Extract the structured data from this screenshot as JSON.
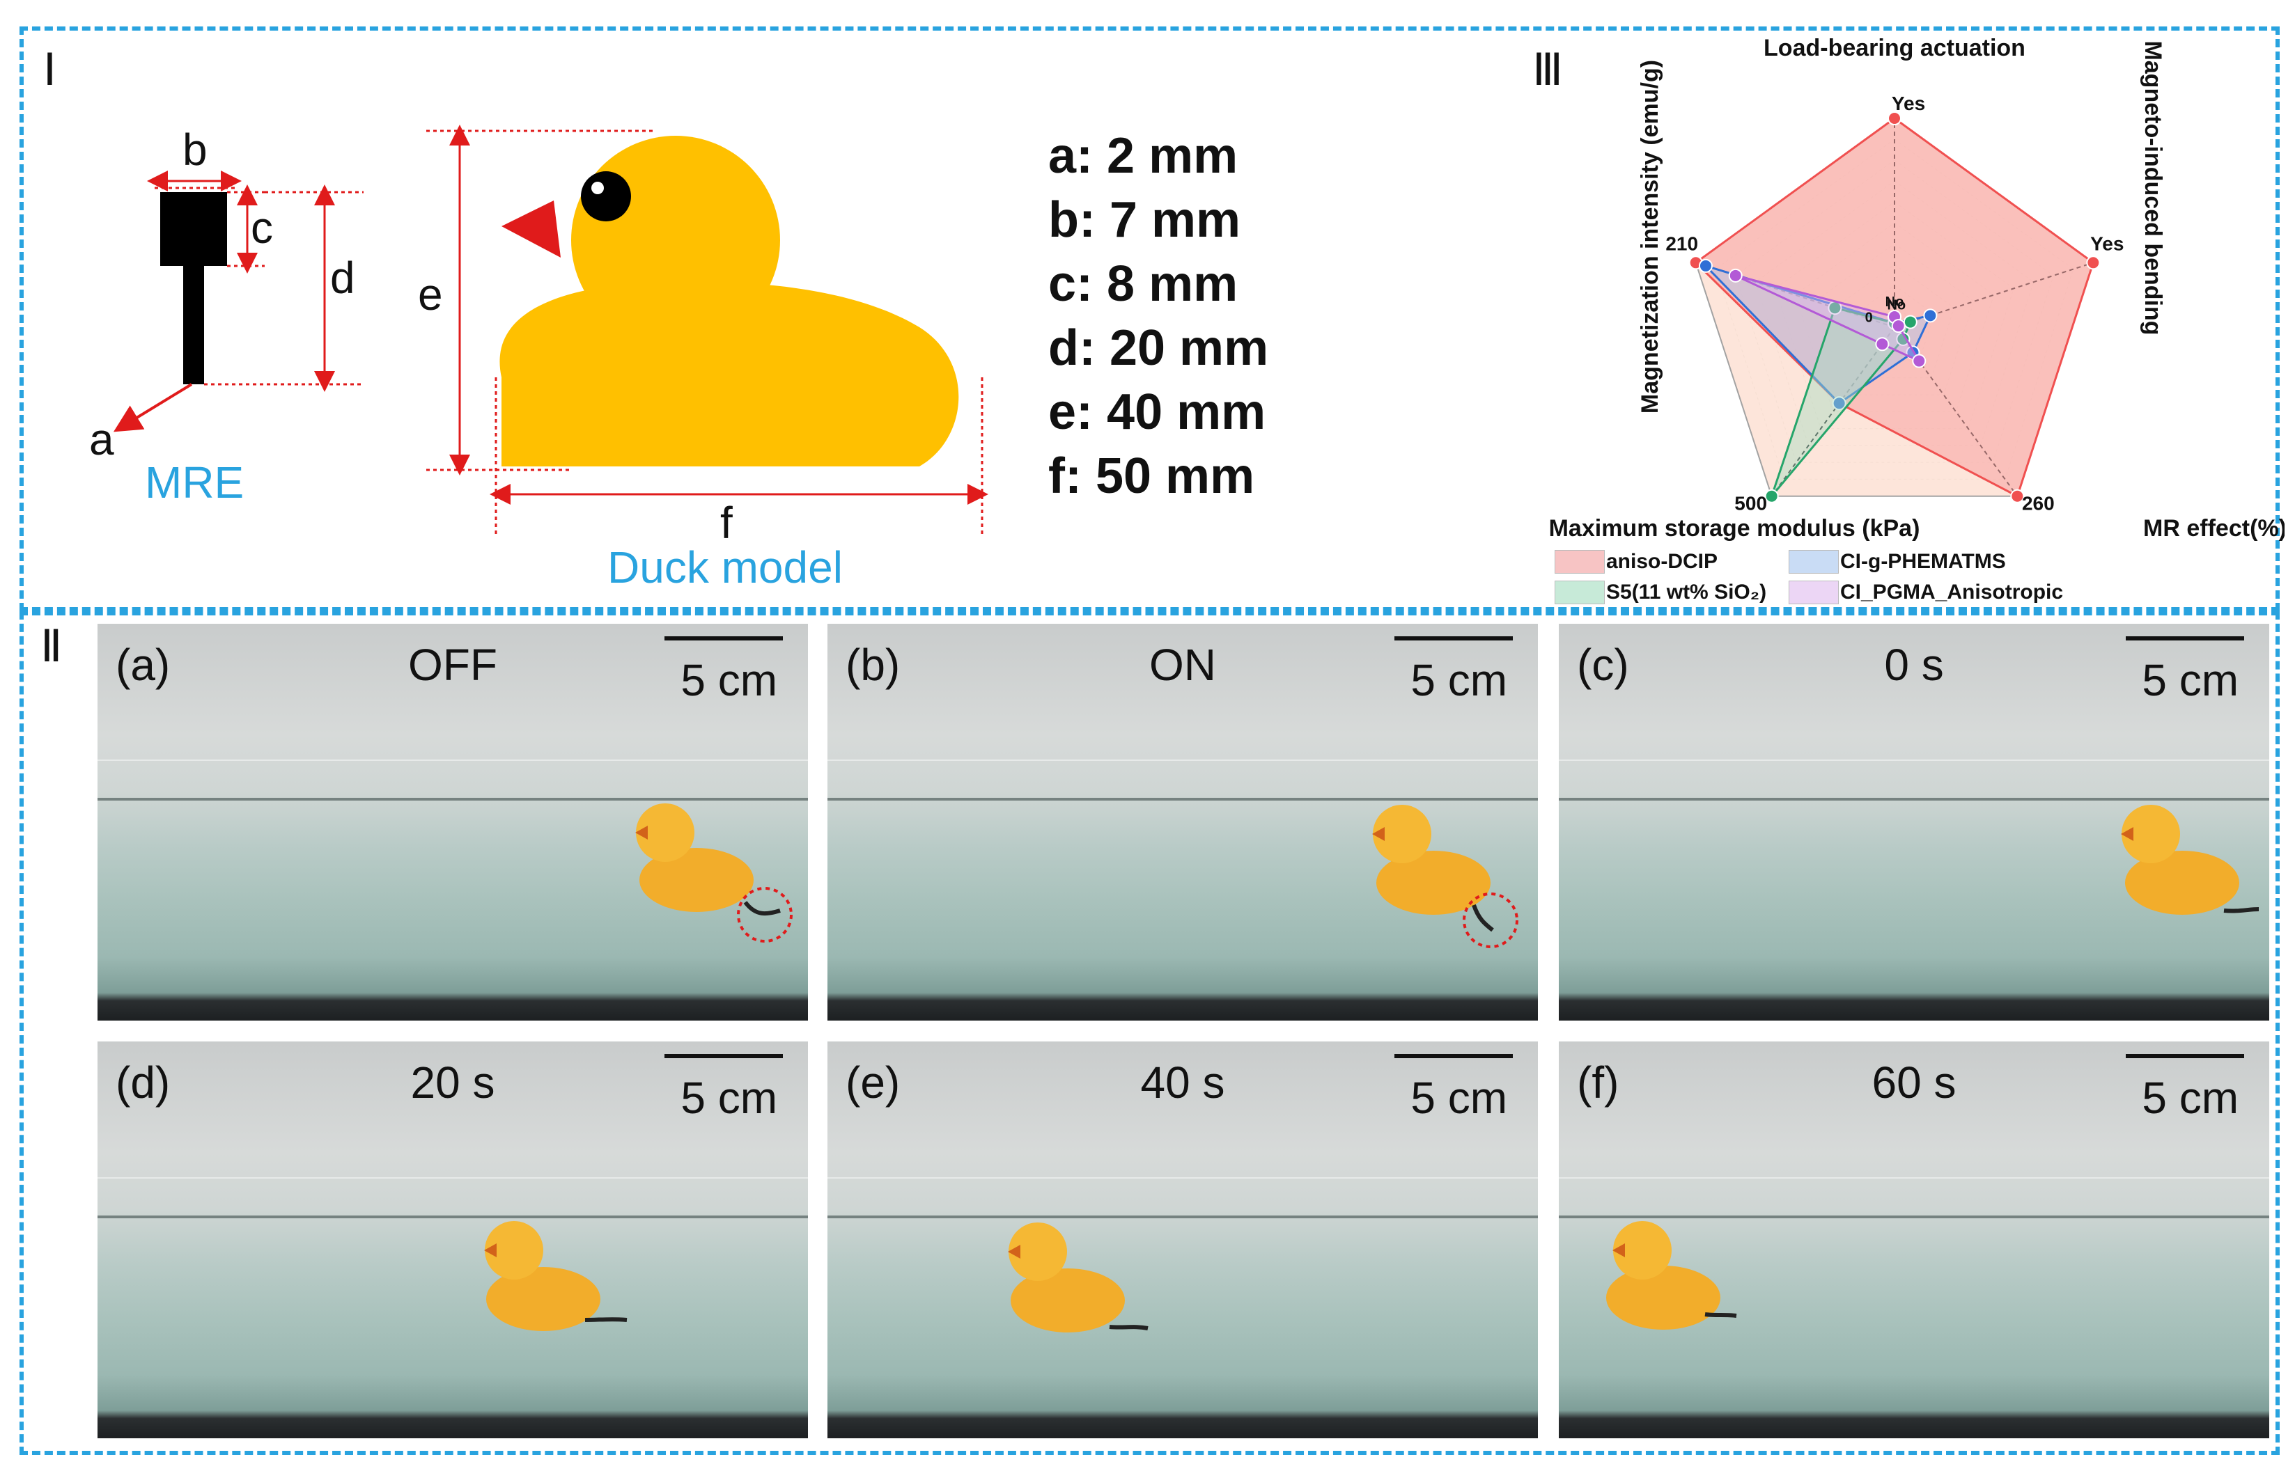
{
  "panel_labels": {
    "p1": "Ⅰ",
    "p2": "Ⅱ",
    "p3": "Ⅲ"
  },
  "mre": {
    "dim_a": "a",
    "dim_b": "b",
    "dim_c": "c",
    "dim_d": "d",
    "caption": "MRE",
    "color": "#000000"
  },
  "duck": {
    "dim_e": "e",
    "dim_f": "f",
    "caption": "Duck model",
    "body_color": "#ffc000",
    "beak_color": "#e01b1b"
  },
  "specs": [
    "a: 2 mm",
    "b: 7 mm",
    "c: 8 mm",
    "d: 20 mm",
    "e: 40 mm",
    "f: 50 mm"
  ],
  "photos": [
    {
      "label": "(a)",
      "title": "OFF",
      "scale": "5 cm"
    },
    {
      "label": "(b)",
      "title": "ON",
      "scale": "5 cm"
    },
    {
      "label": "(c)",
      "title": "0 s",
      "scale": "5 cm"
    },
    {
      "label": "(d)",
      "title": "20 s",
      "scale": "5 cm"
    },
    {
      "label": "(e)",
      "title": "40 s",
      "scale": "5 cm"
    },
    {
      "label": "(f)",
      "title": "60 s",
      "scale": "5 cm"
    }
  ],
  "chart_data": {
    "type": "radar",
    "axes": [
      {
        "name": "Load-bearing actuation",
        "max_label": "Yes",
        "min_label": "No"
      },
      {
        "name": "Magneto-induced bending",
        "max_label": "Yes",
        "min_label": "No"
      },
      {
        "name": "MR effect(%)",
        "max_label": "260",
        "min_label": ""
      },
      {
        "name": "Maximum storage modulus (kPa)",
        "max_label": "500",
        "min_label": ""
      },
      {
        "name": "Magnetization intensity (emu/g)",
        "max_label": "210",
        "min_label": "0"
      }
    ],
    "series": [
      {
        "name": "aniso-DCIP",
        "color": "#f05050",
        "fill": "#f7a3a3",
        "values": [
          1.0,
          1.0,
          1.0,
          0.45,
          1.0
        ]
      },
      {
        "name": "CI-g-PHEMATMS",
        "color": "#2f6fd6",
        "fill": "#a9c6f0",
        "values": [
          0.0,
          0.18,
          0.15,
          0.45,
          0.95
        ]
      },
      {
        "name": "S5(11 wt% SiO₂)",
        "color": "#25a56a",
        "fill": "#a6dcc0",
        "values": [
          0.0,
          0.08,
          0.07,
          1.0,
          0.3
        ]
      },
      {
        "name": "CI_PGMA_Anisotropic",
        "color": "#b35ad6",
        "fill": "#dcb5ec",
        "values": [
          0.05,
          0.0,
          0.2,
          0.1,
          0.8
        ]
      }
    ],
    "grid": true,
    "legend_position": "bottom"
  }
}
